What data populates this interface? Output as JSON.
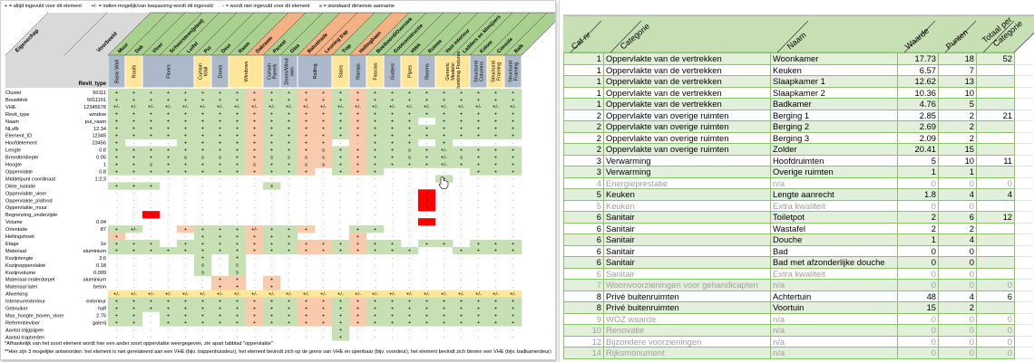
{
  "legend": [
    "+ = altijd ingevuld voor dit element",
    "+/- = indien mogelijk/van toepassing wordt dit ingevuld",
    "- = wordt niet ingevuld voor dit element",
    "s = standaard dimensie aanname"
  ],
  "matrix": {
    "property_header": "Eigenschap",
    "example_header": "Voorbeeld",
    "revit_type_header": "Revit_type",
    "colors": {
      "green": "#c6e0b4",
      "header_green": "#a9d08e",
      "salmon": "#f8cbad",
      "header_salmon": "#f4b183",
      "yellow": "#ffe699",
      "blue": "#acb9ca",
      "red": "#ff0000",
      "gray": "#d9d9d9"
    },
    "columns": [
      {
        "name": "Muur",
        "tone": "g"
      },
      {
        "name": "Dak",
        "tone": "g"
      },
      {
        "name": "Vloer",
        "tone": "g"
      },
      {
        "name": "Schoorsteen(plaat)",
        "tone": "g"
      },
      {
        "name": "Luifel",
        "tone": "g"
      },
      {
        "name": "Pui",
        "tone": "g"
      },
      {
        "name": "Deur",
        "tone": "g"
      },
      {
        "name": "Raam",
        "tone": "g"
      },
      {
        "name": "Dakraam",
        "tone": "o"
      },
      {
        "name": "Paneel",
        "tone": "g"
      },
      {
        "name": "Glas",
        "tone": "g"
      },
      {
        "name": "Balustrade",
        "tone": "o"
      },
      {
        "name": "Leuning trap",
        "tone": "o"
      },
      {
        "name": "Trap",
        "tone": "g"
      },
      {
        "name": "Hellingbaan",
        "tone": "o"
      },
      {
        "name": "Boeiboord/Overstek",
        "tone": "g"
      },
      {
        "name": "Gootconstructie",
        "tone": "g"
      },
      {
        "name": "HWA",
        "tone": "g"
      },
      {
        "name": "Ruimte",
        "tone": "g"
      },
      {
        "name": "Vast interieur",
        "tone": "g"
      },
      {
        "name": "Ladders en klimijzers",
        "tone": "g"
      },
      {
        "name": "Kolom",
        "tone": "g"
      },
      {
        "name": "Console",
        "tone": "g"
      },
      {
        "name": "Balk",
        "tone": "g"
      }
    ],
    "revit_types": [
      {
        "name": "Basic Wall",
        "span": 1,
        "tone": "b"
      },
      {
        "name": "Roofs",
        "span": 1,
        "tone": "y"
      },
      {
        "name": "Floors",
        "span": 3,
        "tone": "b"
      },
      {
        "name": "Curtain Wall",
        "span": 1,
        "tone": "y"
      },
      {
        "name": "Doors",
        "span": 1,
        "tone": "b"
      },
      {
        "name": "Windows",
        "span": 2,
        "tone": "y"
      },
      {
        "name": "Curtain Panels",
        "span": 1,
        "tone": "b"
      },
      {
        "name": "Doors/Wind ows",
        "span": 1,
        "tone": "b"
      },
      {
        "name": "Railing",
        "span": 2,
        "tone": "b"
      },
      {
        "name": "Stairs",
        "span": 1,
        "tone": "y"
      },
      {
        "name": "Ramps",
        "span": 1,
        "tone": "b"
      },
      {
        "name": "Fascias",
        "span": 1,
        "tone": "y"
      },
      {
        "name": "Gutters",
        "span": 1,
        "tone": "b"
      },
      {
        "name": "Pipes",
        "span": 1,
        "tone": "y"
      },
      {
        "name": "Rooms",
        "span": 1,
        "tone": "b"
      },
      {
        "name": "Generic Models\\ Plumbing Fixtures",
        "span": 2,
        "tone": "y"
      },
      {
        "name": "Structural Columns",
        "span": 1,
        "tone": "b"
      },
      {
        "name": "Structural Framing",
        "span": 1,
        "tone": "y"
      },
      {
        "name": "Structural Framing",
        "span": 1,
        "tone": "b"
      }
    ],
    "rows": [
      {
        "label": "Cluster",
        "example": "50111",
        "cells": "+ + + + + + + + + + + + + + + + + + + + + + + +",
        "fills": "ggggggggoggoogoggggggggg"
      },
      {
        "label": "Bouwblok",
        "example": "5011101",
        "cells": "+ + + + + + + + + + + + + + + + + + + + + + + +",
        "fills": "ggggggggoggoogoggggggggg"
      },
      {
        "label": "VHE",
        "example": "12345678",
        "cells": "+/- +/- +/- +/- +/- +/- +/- +/- +/- +/- +/- +/- +/- +/- +/- +/- +/- +/- +/- +/- +/- +/- +/- +/-",
        "fills": "ggggggggoggoogoggggggggg"
      },
      {
        "label": "Revit_type",
        "example": "window",
        "cells": "+ + + + + + + + + + + + + + + + + + + + + + + +",
        "fills": "ggggggggoggoogoggggggggg"
      },
      {
        "label": "Naam",
        "example": "pui_raam",
        "cells": "+ + + + + + + + + + + + + + + + + + - + + + + +",
        "fills": "ggggggggoggoogogggwggggg"
      },
      {
        "label": "NLsfb",
        "example": "12.34",
        "cells": "+ + + + + + + + + + + + + + + + + + + + + + + +",
        "fills": "ggggggggoggoogoggggggggg"
      },
      {
        "label": "Element_ID",
        "example": "12345",
        "cells": "+ + + + + + + + + + + + + + + + + + + + + + + +",
        "fills": "ggggggggoggoogoggggggggg"
      },
      {
        "label": "Hoofdelement",
        "example": "23456",
        "cells": "+ - - - + + + + + + + + + - - + + + - + - - - -",
        "fills": "gwwwggggoggoowogggwgwwww"
      },
      {
        "label": "Lengte",
        "example": "0.8",
        "cells": "+ + + + + + + + + + + + s + + + + s + +/- + + + +",
        "fills": "ggggggggoggoogoggggggggg"
      },
      {
        "label": "Breedte/diepte",
        "example": "0.05",
        "cells": "+ + + + s s s + + s s s s + + + + s + +/- s + + +",
        "fills": "ggggggggoggoogoggggggggg"
      },
      {
        "label": "Hoogte",
        "example": "1",
        "cells": "+ + s + + + + + s + + s s + + + + + + +/- + + + +",
        "fills": "ggggggggoggoogoggggggggg"
      },
      {
        "label": "Oppervlakte",
        "example": "0.8",
        "cells": "+ + + + + + + + + + + + - + + + - - - - - + + +",
        "fills": "ggggggggoggowgogwwwwwggg"
      },
      {
        "label": "Middelpunt coordinaat",
        "example": "1;2;3",
        "cells": "- - - - - - - - - - - - - - - - - - - + - - - -",
        "fills": "wwwwwwwwwwwwwwwwwwwgwwww"
      },
      {
        "label": "Dikte_isolatie",
        "example": "",
        "cells": "+ + + - - - - - - s - - - - - - - - - - - - - -",
        "fills": "gggwwwwwwgwwwwwwwwwwwwww"
      },
      {
        "label": "Oppervlakte_vloer",
        "example": "",
        "cells": "- - - - - - - - - - - - - - - - - - + - - - - -",
        "fills": "wwwwwwwwwwwwwwwwwwrwwwww"
      },
      {
        "label": "Oppervlakte_plafond",
        "example": "",
        "cells": "- - - - - - - - - - - - - - - - - - + - - - - -",
        "fills": "wwwwwwwwwwwwwwwwwwrwwwww"
      },
      {
        "label": "Oppervlakte_muur",
        "example": "",
        "cells": "- - - - - - - - - - - - - - - - - - + - - - - -",
        "fills": "wwwwwwwwwwwwwwwwwwrwwwww"
      },
      {
        "label": "Begrenzing_onderzijde",
        "example": "",
        "cells": "- - + - - - - - - - - - - - - - - - - - - - - -",
        "fills": "wwrwwwwwwwwwwwwwwwwwwwww"
      },
      {
        "label": "Volume",
        "example": "0.04",
        "cells": "- - - - - - - - - - - - - - - - - - + - - - - -",
        "fills": "wwwwwwwwwwwwwwwwwwrwwwww"
      },
      {
        "label": "Orientatie",
        "example": "87",
        "cells": "+ +/- - - + + + + +/- + + + - - + + - - - - - - - -",
        "fills": "ggwwogggoggowwggwwwwwwww"
      },
      {
        "label": "Hellingshoek",
        "example": "",
        "cells": "+ - - - - + + + + + + - - - + - - - - - - - - -",
        "fills": "owwwwgggoggwwwowwwwwwwww"
      },
      {
        "label": "Etage",
        "example": "1e",
        "cells": "+ + + - + + + + + + + + + + + + + - + + - + + +",
        "fills": "gggwggggoggoogoggwggwggg"
      },
      {
        "label": "Materiaal",
        "example": "aluminium",
        "cells": "+ + + + + + + + + + + + + + + + + + - - + + + +",
        "fills": "ggggggggoggoogogggwwgggg"
      },
      {
        "label": "Kozijnlengte",
        "example": "3.6",
        "cells": "- - - - - + - + - - - - - - - - - - - - - - - -",
        "fills": "wwwwwgwgwwwwwwwwwwwwwwww"
      },
      {
        "label": "Kozijnoppervlakte",
        "example": "0.18",
        "cells": "- - - - - s - s - - - - - - - - - - - - - - - -",
        "fills": "wwwwwgwgwwwwwwwwwwwwwwww"
      },
      {
        "label": "Kozijnvolume",
        "example": "0.009",
        "cells": "- - - - - s - s - - - - - - - - - - - - - - - -",
        "fills": "wwwwwgwgwwwwwwwwwwwwwwww"
      },
      {
        "label": "Materiaal onderdorpel",
        "example": "aluminium",
        "cells": "- - - - - - + + - + - - - - - - - - - - - - - -",
        "fills": "wwwwwwoowowwwwwwwwwwwwww"
      },
      {
        "label": "Materiaal latei",
        "example": "beton",
        "cells": "- - - - - - + + - + - - - - - - - - - - - - - -",
        "fills": "wwwwwwoowowwwwwwwwwwwwww"
      },
      {
        "label": "Afwerking",
        "example": "",
        "cells": "+/- +/- +/- +/- +/- +/- +/- +/- +/- +/- +/- +/- +/- +/- +/- +/- +/- +/- +/- +/- +/- +/- +/- +/-",
        "fills": "yyyyyyyyyyyyyyyyyyyyyyyy"
      },
      {
        "label": "Interieur/exterieur",
        "example": "exterieur",
        "cells": "+ + + + + + + + + + + + + + + + + + + + + + + +",
        "fills": "ggggggggoggoogoggggggggg"
      },
      {
        "label": "Gebruiker",
        "example": "half",
        "cells": "+ + + + + + + + + + + + + + + + + + + + + + + +",
        "fills": "ggggggggoggoogoggggggggg"
      },
      {
        "label": "Max_hoogte_boven_vloer",
        "example": "2.75",
        "cells": "+ + - + + + + + + + + + + + + + + + + + + + + +",
        "fills": "ggwgggggoggoogoggggggggg"
      },
      {
        "label": "Referentievloer",
        "example": "galerij",
        "cells": "+ + - + + + + + + + + + + + + + + + + + + + + +",
        "fills": "ggwgggggoggoogoggggggggg"
      },
      {
        "label": "Aantal stijgpijpen",
        "example": "",
        "cells": "- - - - - - - - - - - - - + - - - - - - - - - -",
        "fills": "wwwwwwwwwwwwwgwwwwwwwwww"
      },
      {
        "label": "Aantal traptreden",
        "example": "",
        "cells": "- - - - - - - - - - - - - + - - - - - - - - - -",
        "fills": "wwwwwwwwwwwwwgwwwwwwwwww"
      }
    ],
    "notes": [
      "*Afhankelijk van het soort element wordt hier een ander soort oppervlakte weergegeven, zie apart tabblad \"oppervlakte\"",
      "**Hier zijn 3 mogelijke antwoorden: het element is niet gerelateerd aan een VHE (bijv. trappenhuisdeur), het element bevindt zich op de grens van VHE en openbaar (bijv. voordeur), het element bevindt zich binnen een VHE (bijv. badkamerdeur)"
    ]
  },
  "points_table": {
    "headers": [
      "Cat nr",
      "Categorie",
      "Naam",
      "Waarde",
      "Punten",
      "Totaal per Categorie"
    ],
    "colors": {
      "header": "#c6e0b4",
      "row_alt": "#e2efda",
      "border": "#8cbf6e",
      "muted_text": "#a0a0a0"
    },
    "rows": [
      {
        "cat": "1",
        "categorie": "Oppervlakte van de vertrekken",
        "naam": "Woonkamer",
        "waarde": "17.73",
        "punten": "18",
        "totaal": "52",
        "muted": false
      },
      {
        "cat": "1",
        "categorie": "Oppervlakte van de vertrekken",
        "naam": "Keuken",
        "waarde": "6.57",
        "punten": "7",
        "totaal": "",
        "muted": false
      },
      {
        "cat": "1",
        "categorie": "Oppervlakte van de vertrekken",
        "naam": "Slaapkamer 1",
        "waarde": "12.62",
        "punten": "13",
        "totaal": "",
        "muted": false
      },
      {
        "cat": "1",
        "categorie": "Oppervlakte van de vertrekken",
        "naam": "Slaapkamer 2",
        "waarde": "10.36",
        "punten": "10",
        "totaal": "",
        "muted": false
      },
      {
        "cat": "1",
        "categorie": "Oppervlakte van de vertrekken",
        "naam": "Badkamer",
        "waarde": "4.76",
        "punten": "5",
        "totaal": "",
        "muted": false
      },
      {
        "cat": "2",
        "categorie": "Oppervlakte van overige ruimten",
        "naam": "Berging 1",
        "waarde": "2.85",
        "punten": "2",
        "totaal": "21",
        "muted": false
      },
      {
        "cat": "2",
        "categorie": "Oppervlakte van overige ruimten",
        "naam": "Berging 2",
        "waarde": "2.69",
        "punten": "2",
        "totaal": "",
        "muted": false
      },
      {
        "cat": "2",
        "categorie": "Oppervlakte van overige ruimten",
        "naam": "Berging 3",
        "waarde": "2.09",
        "punten": "2",
        "totaal": "",
        "muted": false
      },
      {
        "cat": "2",
        "categorie": "Oppervlakte van overige ruimten",
        "naam": "Zolder",
        "waarde": "20.41",
        "punten": "15",
        "totaal": "",
        "muted": false
      },
      {
        "cat": "3",
        "categorie": "Verwarming",
        "naam": "Hoofdruimten",
        "waarde": "5",
        "punten": "10",
        "totaal": "11",
        "muted": false
      },
      {
        "cat": "3",
        "categorie": "Verwarming",
        "naam": "Overige ruimten",
        "waarde": "1",
        "punten": "1",
        "totaal": "",
        "muted": false
      },
      {
        "cat": "4",
        "categorie": "Energieprestatie",
        "naam": "n/a",
        "waarde": "0",
        "punten": "0",
        "totaal": "0",
        "muted": true
      },
      {
        "cat": "5",
        "categorie": "Keuken",
        "naam": "Lengte aanrecht",
        "waarde": "1.8",
        "punten": "4",
        "totaal": "4",
        "muted": false
      },
      {
        "cat": "5",
        "categorie": "Keuken",
        "naam": "Extra kwaliteit",
        "waarde": "0",
        "punten": "0",
        "totaal": "",
        "muted": true
      },
      {
        "cat": "6",
        "categorie": "Sanitair",
        "naam": "Toiletpot",
        "waarde": "2",
        "punten": "6",
        "totaal": "12",
        "muted": false
      },
      {
        "cat": "6",
        "categorie": "Sanitair",
        "naam": "Wastafel",
        "waarde": "2",
        "punten": "2",
        "totaal": "",
        "muted": false
      },
      {
        "cat": "6",
        "categorie": "Sanitair",
        "naam": "Douche",
        "waarde": "1",
        "punten": "4",
        "totaal": "",
        "muted": false
      },
      {
        "cat": "6",
        "categorie": "Sanitair",
        "naam": "Bad",
        "waarde": "0",
        "punten": "0",
        "totaal": "",
        "muted": false
      },
      {
        "cat": "6",
        "categorie": "Sanitair",
        "naam": "Bad met afzonderlijke douche",
        "waarde": "0",
        "punten": "0",
        "totaal": "",
        "muted": false
      },
      {
        "cat": "6",
        "categorie": "Sanitair",
        "naam": "Extra kwaliteit",
        "waarde": "0",
        "punten": "0",
        "totaal": "",
        "muted": true
      },
      {
        "cat": "7",
        "categorie": "Woonvoorzieningen voor gehandicapten",
        "naam": "n/a",
        "waarde": "0",
        "punten": "0",
        "totaal": "0",
        "muted": true
      },
      {
        "cat": "8",
        "categorie": "Privé buitenruimten",
        "naam": "Achtertuin",
        "waarde": "48",
        "punten": "4",
        "totaal": "6",
        "muted": false
      },
      {
        "cat": "8",
        "categorie": "Privé buitenruimten",
        "naam": "Voortuin",
        "waarde": "15",
        "punten": "2",
        "totaal": "",
        "muted": false
      },
      {
        "cat": "9",
        "categorie": "WOZ waarde",
        "naam": "n/a",
        "waarde": "0",
        "punten": "0",
        "totaal": "0",
        "muted": true
      },
      {
        "cat": "10",
        "categorie": "Renovatie",
        "naam": "n/a",
        "waarde": "0",
        "punten": "0",
        "totaal": "0",
        "muted": true
      },
      {
        "cat": "12",
        "categorie": "Bijzondere voorzieningen",
        "naam": "n/a",
        "waarde": "0",
        "punten": "0",
        "totaal": "0",
        "muted": true
      },
      {
        "cat": "14",
        "categorie": "Rijksmonument",
        "naam": "n/a",
        "waarde": "0",
        "punten": "0",
        "totaal": "0",
        "muted": true
      }
    ]
  }
}
